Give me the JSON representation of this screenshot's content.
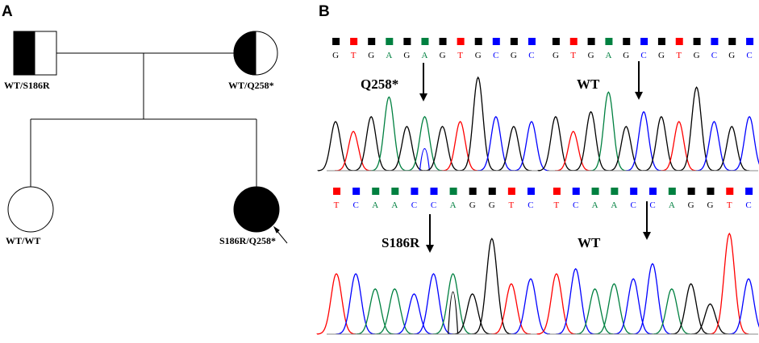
{
  "panel_a": {
    "label": "A",
    "father": {
      "genotype": "WT/S186R"
    },
    "mother": {
      "genotype": "WT/Q258*"
    },
    "child1": {
      "genotype": "WT/WT"
    },
    "proband": {
      "genotype": "S186R/Q258*"
    }
  },
  "panel_b": {
    "label": "B",
    "traces": [
      {
        "mutation_label": "Q258*",
        "bases": [
          "G",
          "T",
          "G",
          "A",
          "G",
          "A",
          "G",
          "T",
          "G",
          "C",
          "G",
          "C"
        ]
      },
      {
        "mutation_label": "WT",
        "bases": [
          "G",
          "T",
          "G",
          "A",
          "G",
          "C",
          "G",
          "T",
          "G",
          "C",
          "G",
          "C"
        ]
      },
      {
        "mutation_label": "S186R",
        "bases": [
          "T",
          "C",
          "A",
          "A",
          "C",
          "C",
          "A",
          "G",
          "G",
          "T",
          "C"
        ]
      },
      {
        "mutation_label": "WT",
        "bases": [
          "T",
          "C",
          "A",
          "A",
          "C",
          "C",
          "A",
          "G",
          "G",
          "T",
          "C"
        ]
      }
    ],
    "base_colors": {
      "G": "#000000",
      "T": "#ff0000",
      "A": "#008040",
      "C": "#0000ff"
    }
  }
}
